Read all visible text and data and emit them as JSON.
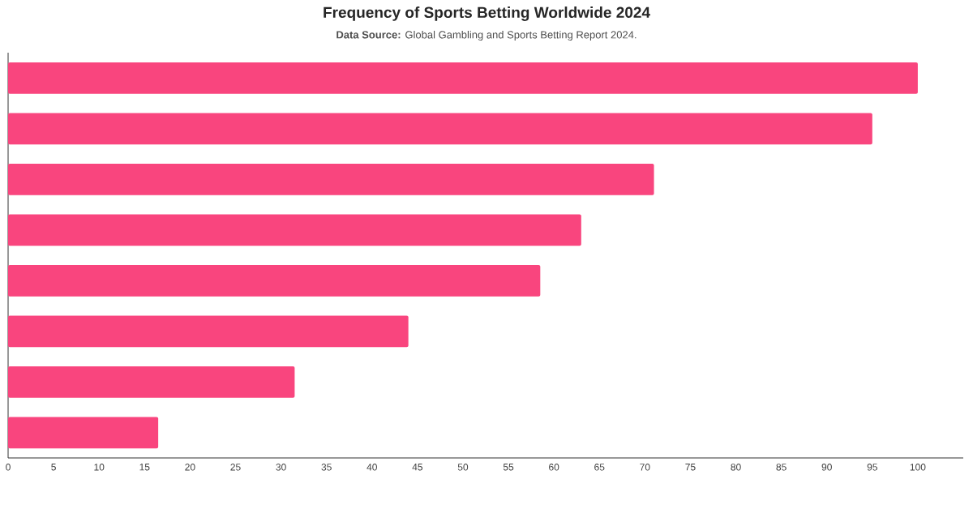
{
  "chart_data": {
    "type": "bar",
    "orientation": "horizontal",
    "title": "Frequency of Sports Betting Worldwide 2024",
    "subtitle": "**Data Source:** Global Gambling and Sports Betting Report 2024.",
    "categories": [
      null,
      null,
      null,
      null,
      null,
      null,
      null,
      null
    ],
    "values": [
      100,
      95,
      71,
      63,
      58.5,
      44,
      31.5,
      16.5
    ],
    "color": "#f9457e",
    "xlim": [
      0,
      105
    ],
    "xticks": [
      0,
      5,
      10,
      15,
      20,
      25,
      30,
      35,
      40,
      45,
      50,
      55,
      60,
      65,
      70,
      75,
      80,
      85,
      90,
      95,
      100
    ],
    "grid": false
  }
}
